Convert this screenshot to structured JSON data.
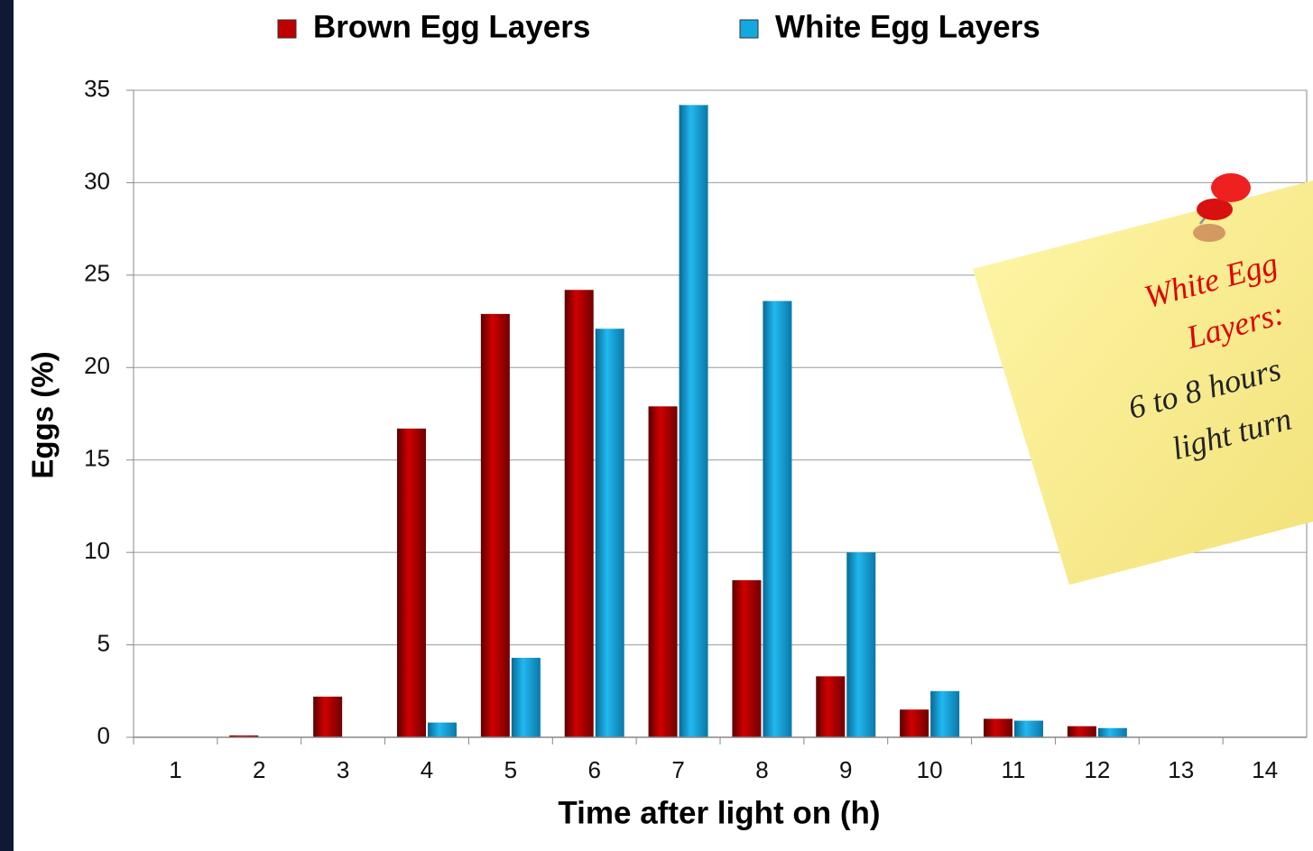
{
  "chart_data": {
    "type": "bar",
    "categories": [
      "1",
      "2",
      "3",
      "4",
      "5",
      "6",
      "7",
      "8",
      "9",
      "10",
      "11",
      "12",
      "13",
      "14"
    ],
    "series": [
      {
        "name": "Brown Egg Layers",
        "color": "#c00000",
        "values": [
          0,
          0.1,
          2.2,
          16.7,
          22.9,
          24.2,
          17.9,
          8.5,
          3.3,
          1.5,
          1.0,
          0.6,
          0,
          0
        ]
      },
      {
        "name": "White Egg Layers",
        "color": "#13a8e0",
        "values": [
          0,
          0,
          0,
          0.8,
          4.3,
          22.1,
          34.2,
          23.6,
          10.0,
          2.5,
          0.9,
          0.5,
          0,
          0
        ]
      }
    ],
    "x_label": "Time after light on (h)",
    "y_label": "Eggs (%)",
    "ylim": [
      0,
      35
    ],
    "yticks": [
      0,
      5,
      10,
      15,
      20,
      25,
      30,
      35
    ],
    "grid": true,
    "legend": "top",
    "annotation": [
      "White Egg",
      "Layers:",
      "6 to 8 hours",
      "light turn"
    ]
  }
}
